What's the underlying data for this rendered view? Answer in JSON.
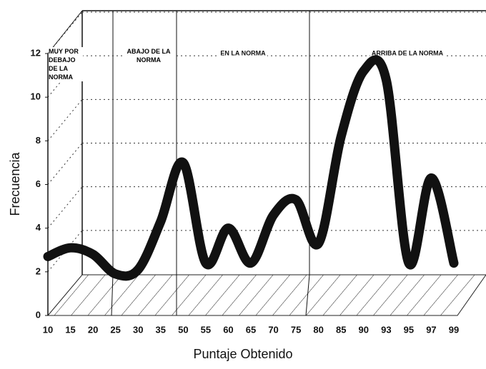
{
  "chart_data": {
    "type": "line",
    "categories": [
      "10",
      "15",
      "20",
      "25",
      "30",
      "35",
      "50",
      "55",
      "60",
      "65",
      "70",
      "75",
      "80",
      "85",
      "90",
      "93",
      "95",
      "97",
      "99"
    ],
    "series": [
      {
        "name": null,
        "color": "#111111",
        "values": [
          2.7,
          3.1,
          2.8,
          1.9,
          2.1,
          4.3,
          7.0,
          2.4,
          4.0,
          2.4,
          4.6,
          5.3,
          3.3,
          8.2,
          11.2,
          10.8,
          2.4,
          6.3,
          2.4
        ]
      }
    ],
    "ylim": [
      0,
      12
    ],
    "yticks": [
      0,
      2,
      4,
      6,
      8,
      10,
      12
    ],
    "grid": true,
    "ylabel": "Frecuencia",
    "xlabel": "Puntaje Obtenido",
    "annotations": [
      "MUY POR DEBAJO DE LA NORMA",
      "ABAJO DE LA NORMA",
      "EN LA NORMA",
      "ARRIBA DE LA NORMA"
    ]
  }
}
